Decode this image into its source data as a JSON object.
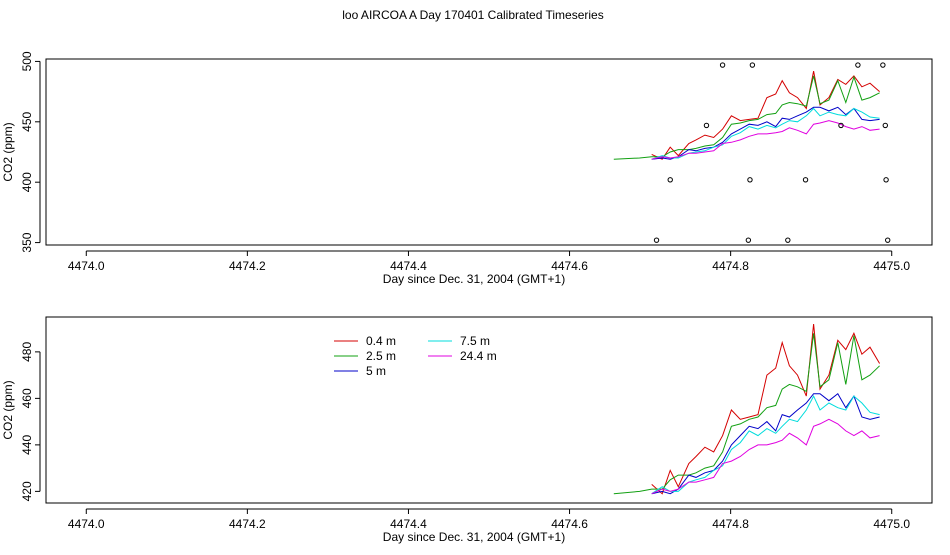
{
  "title": "loo AIRCOA A  Day 170401  Calibrated Timeseries",
  "colors": {
    "0.4 m": "#d40000",
    "2.5 m": "#12a012",
    "5 m": "#0000c8",
    "7.5 m": "#00dcdc",
    "24.4 m": "#e000e0",
    "points": "#000000"
  },
  "chart_data": [
    {
      "type": "scatter",
      "xlabel": "Day since Dec. 31, 2004 (GMT+1)",
      "ylabel": "CO2 (ppm)",
      "xlim": [
        4473.95,
        4475.05
      ],
      "ylim": [
        348,
        502
      ],
      "xticks": [
        "4474.0",
        "4474.2",
        "4474.4",
        "4474.6",
        "4474.8",
        "4475.0"
      ],
      "yticks": [
        "350",
        "400",
        "450",
        "500"
      ],
      "points": [
        {
          "x": 4474.708,
          "y": 352
        },
        {
          "x": 4474.725,
          "y": 402
        },
        {
          "x": 4474.77,
          "y": 447
        },
        {
          "x": 4474.79,
          "y": 497
        },
        {
          "x": 4474.822,
          "y": 352
        },
        {
          "x": 4474.824,
          "y": 402
        },
        {
          "x": 4474.827,
          "y": 497
        },
        {
          "x": 4474.871,
          "y": 352
        },
        {
          "x": 4474.893,
          "y": 402
        },
        {
          "x": 4474.937,
          "y": 447
        },
        {
          "x": 4474.958,
          "y": 497
        },
        {
          "x": 4474.989,
          "y": 497
        },
        {
          "x": 4474.992,
          "y": 447
        },
        {
          "x": 4474.993,
          "y": 402
        },
        {
          "x": 4474.995,
          "y": 352
        }
      ]
    },
    {
      "type": "line",
      "xlabel": "Day since Dec. 31, 2004 (GMT+1)",
      "ylabel": "CO2 (ppm)",
      "xlim": [
        4473.95,
        4475.05
      ],
      "ylim": [
        415,
        495
      ],
      "xticks": [
        "4474.0",
        "4474.2",
        "4474.4",
        "4474.6",
        "4474.8",
        "4475.0"
      ],
      "yticks": [
        "420",
        "440",
        "460",
        "480"
      ],
      "legend": {
        "position": "top-left"
      },
      "series": [
        {
          "name": "0.4 m",
          "x": [
            4474.702,
            4474.715,
            4474.725,
            4474.735,
            4474.748,
            4474.757,
            4474.768,
            4474.779,
            4474.79,
            4474.801,
            4474.812,
            4474.823,
            4474.834,
            4474.845,
            4474.856,
            4474.864,
            4474.873,
            4474.883,
            4474.894,
            4474.903,
            4474.911,
            4474.922,
            4474.933,
            4474.943,
            4474.953,
            4474.963,
            4474.973,
            4474.985
          ],
          "y": [
            423,
            419,
            429,
            422,
            432,
            435,
            439,
            437,
            444,
            455,
            451,
            452,
            453,
            470,
            473,
            484,
            474,
            470,
            461,
            492,
            464,
            470,
            485,
            481,
            488,
            479,
            482,
            475
          ]
        },
        {
          "name": "2.5 m",
          "x": [
            4474.655,
            4474.687,
            4474.702,
            4474.715,
            4474.725,
            4474.735,
            4474.748,
            4474.757,
            4474.768,
            4474.779,
            4474.79,
            4474.801,
            4474.812,
            4474.823,
            4474.834,
            4474.845,
            4474.856,
            4474.864,
            4474.873,
            4474.883,
            4474.894,
            4474.903,
            4474.911,
            4474.922,
            4474.933,
            4474.943,
            4474.953,
            4474.963,
            4474.973,
            4474.985
          ],
          "y": [
            419,
            420,
            421,
            421,
            425,
            427,
            427,
            428,
            430,
            431,
            437,
            448,
            449,
            451,
            452,
            456,
            457,
            464,
            466,
            465,
            463,
            488,
            465,
            468,
            484,
            466,
            487,
            468,
            470,
            474
          ]
        },
        {
          "name": "5 m",
          "x": [
            4474.702,
            4474.715,
            4474.725,
            4474.735,
            4474.748,
            4474.757,
            4474.768,
            4474.779,
            4474.79,
            4474.801,
            4474.812,
            4474.823,
            4474.834,
            4474.845,
            4474.856,
            4474.864,
            4474.873,
            4474.883,
            4474.894,
            4474.903,
            4474.911,
            4474.922,
            4474.933,
            4474.943,
            4474.953,
            4474.963,
            4474.973,
            4474.985
          ],
          "y": [
            419,
            420,
            419,
            421,
            427,
            426,
            428,
            429,
            433,
            440,
            444,
            448,
            447,
            450,
            446,
            453,
            452,
            455,
            458,
            462,
            462,
            459,
            462,
            456,
            461,
            452,
            451,
            452
          ]
        },
        {
          "name": "7.5 m",
          "x": [
            4474.702,
            4474.715,
            4474.725,
            4474.735,
            4474.748,
            4474.757,
            4474.768,
            4474.779,
            4474.79,
            4474.801,
            4474.812,
            4474.823,
            4474.834,
            4474.845,
            4474.856,
            4474.864,
            4474.873,
            4474.883,
            4474.894,
            4474.903,
            4474.911,
            4474.922,
            4474.933,
            4474.943,
            4474.953,
            4474.963,
            4474.973,
            4474.985
          ],
          "y": [
            419,
            422,
            420,
            420,
            424,
            425,
            426,
            429,
            431,
            438,
            441,
            446,
            444,
            447,
            445,
            448,
            451,
            450,
            455,
            461,
            455,
            458,
            456,
            455,
            461,
            458,
            454,
            453
          ]
        },
        {
          "name": "24.4 m",
          "x": [
            4474.702,
            4474.715,
            4474.725,
            4474.735,
            4474.748,
            4474.757,
            4474.768,
            4474.779,
            4474.79,
            4474.801,
            4474.812,
            4474.823,
            4474.834,
            4474.845,
            4474.856,
            4474.864,
            4474.873,
            4474.883,
            4474.894,
            4474.903,
            4474.911,
            4474.922,
            4474.933,
            4474.943,
            4474.953,
            4474.963,
            4474.973,
            4474.985
          ],
          "y": [
            419,
            421,
            420,
            421,
            424,
            424,
            425,
            426,
            432,
            433,
            435,
            438,
            440,
            440,
            441,
            442,
            445,
            443,
            440,
            448,
            449,
            451,
            449,
            446,
            444,
            446,
            443,
            444
          ]
        }
      ]
    }
  ]
}
